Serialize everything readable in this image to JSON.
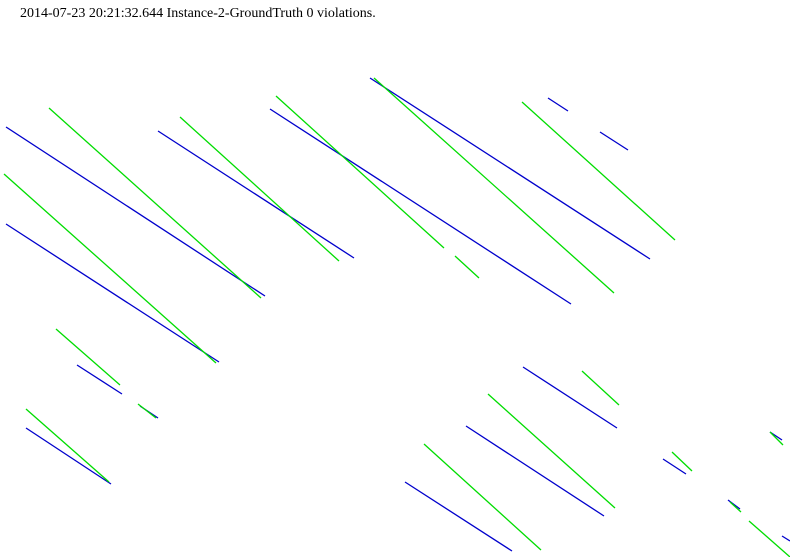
{
  "header": {
    "timestamp": "2014-07-23 20:21:32.644",
    "instance": "Instance-2-GroundTruth",
    "violations": "0 violations."
  },
  "colors": {
    "blue": "#0000cc",
    "green": "#00dd00",
    "background": "#ffffff"
  }
}
